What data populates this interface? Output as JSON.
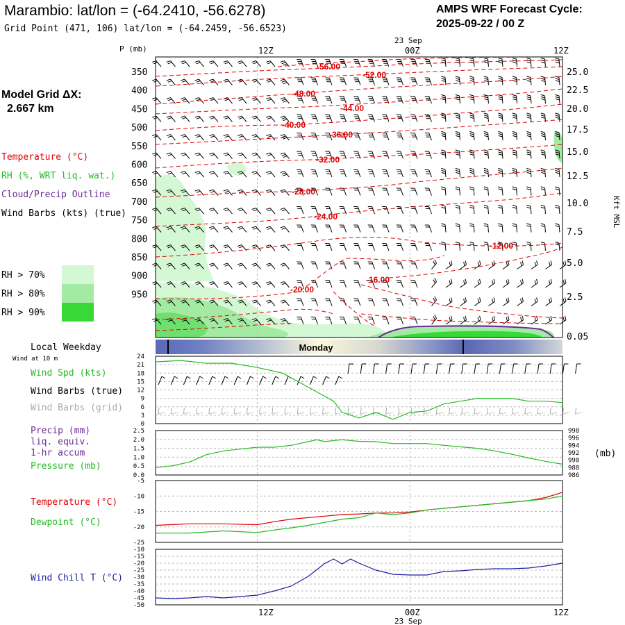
{
  "header": {
    "title": "Marambio:  lat/lon = (-64.2410, -56.6278)",
    "grid_point": "Grid Point (471, 106) lat/lon = (-64.2459, -56.6523)",
    "cycle_label": "AMPS WRF Forecast Cycle:",
    "cycle_value": "2025-09-22 / 00  Z"
  },
  "legend": {
    "model_grid": "Model Grid ΔX:",
    "model_grid_value": "2.667 km",
    "temperature": "Temperature (°C)",
    "rh": "RH (%, WRT liq. wat.)",
    "cloud": "Cloud/Precip Outline",
    "wind": "Wind Barbs (kts) (true)",
    "rh70": "RH > 70%",
    "rh80": "RH > 80%",
    "rh90": "RH > 90%",
    "rh_colors": [
      "#d4f7d4",
      "#a3eba3",
      "#38d838"
    ]
  },
  "colors": {
    "temperature": "#e00000",
    "rh_fill": "#a3eba3",
    "cloud": "#6a2a96",
    "wind": "#000000",
    "green_line": "#22bb22",
    "wind_chill": "#1e1ea0",
    "grid_wind": "#aaaaaa"
  },
  "time_axis": {
    "top_ticks": [
      "12Z",
      "00Z",
      "12Z"
    ],
    "date": "23 Sep",
    "bottom_ticks": [
      "12Z",
      "00Z",
      "12Z"
    ],
    "bottom_date": "23 Sep"
  },
  "upper": {
    "pressure_label": "P (mb)",
    "pressure_ticks": [
      "350",
      "400",
      "450",
      "500",
      "550",
      "600",
      "650",
      "700",
      "750",
      "800",
      "850",
      "900",
      "950"
    ],
    "height_ticks": [
      "25.0",
      "22.5",
      "20.0",
      "17.5",
      "15.0",
      "12.5",
      "10.0",
      "7.5",
      "5.0",
      "2.5",
      "0.05"
    ],
    "height_label": "Kft MSL",
    "isotherm_labels": [
      "-56.00",
      "-52.00",
      "-48.00",
      "-44.00",
      "-40.00",
      "-36.00",
      "-32.00",
      "-28.00",
      "-24.00",
      "-20.00",
      "-16.00",
      "-12.00"
    ]
  },
  "weekday": {
    "label": "Local Weekday",
    "day": "Monday"
  },
  "panel_wind": {
    "sub": "Wind at 10 m",
    "spd": "Wind Spd (kts)",
    "true": "Wind Barbs (true)",
    "grid": "Wind Barbs (grid)",
    "ticks": [
      "24",
      "21",
      "18",
      "15",
      "12",
      "9",
      "6",
      "3",
      "0"
    ]
  },
  "panel_precip": {
    "precip": "Precip (mm)",
    "liq": "liq. equiv.",
    "accum": "1-hr accum",
    "pressure": "Pressure (mb)",
    "left_ticks": [
      "2.5",
      "2.0",
      "1.5",
      "1.0",
      "0.5",
      "0.0"
    ],
    "right_ticks": [
      "998",
      "996",
      "994",
      "992",
      "990",
      "988",
      "986"
    ],
    "unit": "(mb)"
  },
  "panel_temp": {
    "temperature": "Temperature (°C)",
    "dewpoint": "Dewpoint (°C)",
    "ticks": [
      "-5",
      "-10",
      "-15",
      "-20",
      "-25"
    ]
  },
  "panel_chill": {
    "label": "Wind Chill T (°C)",
    "ticks": [
      "-10",
      "-15",
      "-20",
      "-25",
      "-30",
      "-35",
      "-40",
      "-45",
      "-50"
    ]
  },
  "chart_data": [
    {
      "type": "line",
      "title": "Wind Spd (kts)",
      "ylim": [
        0,
        24
      ],
      "x_hours": [
        0,
        3,
        6,
        9,
        12,
        15,
        18,
        21,
        22,
        24,
        26,
        28,
        30,
        32,
        34,
        36,
        38,
        40,
        42,
        44,
        46,
        48
      ],
      "series": [
        {
          "name": "Wind Spd (kts)",
          "values": [
            22,
            22.5,
            21.5,
            21.5,
            20,
            18,
            13,
            8,
            4,
            2,
            4,
            1.5,
            4,
            4.5,
            7,
            8,
            9,
            9,
            9,
            8,
            8,
            7.5
          ]
        }
      ]
    },
    {
      "type": "line",
      "title": "Precip / Pressure",
      "ylim": [
        0,
        2.5
      ],
      "right_ylim": [
        986,
        998
      ],
      "x_hours": [
        0,
        2,
        4,
        6,
        8,
        10,
        12,
        14,
        16,
        18,
        19,
        20,
        21,
        22,
        24,
        26,
        28,
        30,
        32,
        34,
        36,
        38,
        40,
        42,
        44,
        46,
        48
      ],
      "series": [
        {
          "name": "Pressure (mb)",
          "values": [
            988,
            988.5,
            989.5,
            991.5,
            992.5,
            993,
            993.5,
            993.5,
            994,
            995,
            995.5,
            995,
            995.3,
            995.5,
            995.1,
            995,
            994.5,
            994.5,
            994.5,
            994,
            993.6,
            993.2,
            992.5,
            991.6,
            990.6,
            989.7,
            988.9
          ]
        },
        {
          "name": "Precip (mm)",
          "values": []
        }
      ]
    },
    {
      "type": "line",
      "title": "Temperature / Dewpoint",
      "ylim": [
        -25,
        -5
      ],
      "x_hours": [
        0,
        4,
        8,
        12,
        14,
        16,
        18,
        20,
        22,
        24,
        26,
        28,
        30,
        32,
        34,
        36,
        38,
        40,
        42,
        44,
        46,
        48
      ],
      "series": [
        {
          "name": "Temperature (°C)",
          "values": [
            -19.5,
            -19,
            -19,
            -19.3,
            -18.3,
            -17.5,
            -17,
            -16.5,
            -16,
            -15.8,
            -15.5,
            -15.5,
            -15.2,
            -14.5,
            -14,
            -13.5,
            -13,
            -12.5,
            -12,
            -11.5,
            -10.5,
            -8.8
          ]
        },
        {
          "name": "Dewpoint (°C)",
          "values": [
            -22,
            -22,
            -21.3,
            -21.8,
            -21,
            -20.3,
            -19.5,
            -18.5,
            -17.5,
            -17,
            -15.5,
            -16,
            -15.5,
            -14.5,
            -14,
            -13.5,
            -13,
            -12.5,
            -12,
            -11.5,
            -11,
            -10
          ]
        }
      ]
    },
    {
      "type": "line",
      "title": "Wind Chill T (°C)",
      "ylim": [
        -50,
        -10
      ],
      "x_hours": [
        0,
        2,
        4,
        6,
        8,
        10,
        12,
        14,
        16,
        18,
        20,
        21,
        22,
        23,
        24,
        26,
        28,
        30,
        32,
        34,
        36,
        38,
        40,
        42,
        44,
        46,
        48
      ],
      "series": [
        {
          "name": "Wind Chill T (°C)",
          "values": [
            -45,
            -45.5,
            -45,
            -44,
            -45,
            -44,
            -43,
            -40,
            -36.5,
            -29.5,
            -20,
            -17,
            -20.5,
            -17,
            -20,
            -25,
            -28,
            -28.5,
            -28.5,
            -26,
            -25.5,
            -24.5,
            -24,
            -24,
            -23.5,
            -22,
            -20
          ]
        }
      ]
    }
  ]
}
